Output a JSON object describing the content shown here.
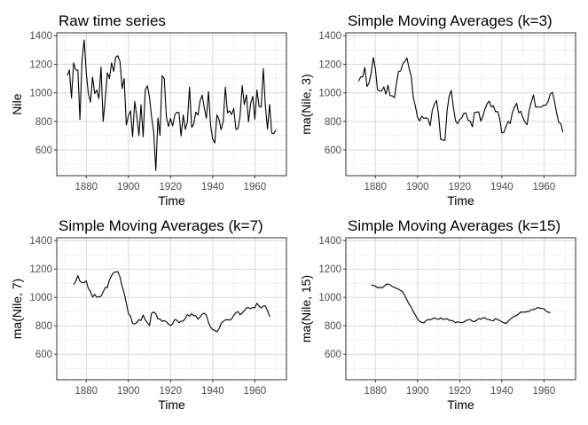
{
  "chart_data": [
    {
      "type": "line",
      "title": "Raw time series",
      "xlabel": "Time",
      "ylabel": "Nile",
      "xlim": [
        1866,
        1975
      ],
      "ylim": [
        420,
        1420
      ],
      "xticks": [
        1880,
        1900,
        1920,
        1940,
        1960
      ],
      "yticks": [
        600,
        800,
        1000,
        1200,
        1400
      ],
      "grid": true,
      "series": [
        {
          "x": [
            1871,
            1872,
            1873,
            1874,
            1875,
            1876,
            1877,
            1878,
            1879,
            1880,
            1881,
            1882,
            1883,
            1884,
            1885,
            1886,
            1887,
            1888,
            1889,
            1890,
            1891,
            1892,
            1893,
            1894,
            1895,
            1896,
            1897,
            1898,
            1899,
            1900,
            1901,
            1902,
            1903,
            1904,
            1905,
            1906,
            1907,
            1908,
            1909,
            1910,
            1911,
            1912,
            1913,
            1914,
            1915,
            1916,
            1917,
            1918,
            1919,
            1920,
            1921,
            1922,
            1923,
            1924,
            1925,
            1926,
            1927,
            1928,
            1929,
            1930,
            1931,
            1932,
            1933,
            1934,
            1935,
            1936,
            1937,
            1938,
            1939,
            1940,
            1941,
            1942,
            1943,
            1944,
            1945,
            1946,
            1947,
            1948,
            1949,
            1950,
            1951,
            1952,
            1953,
            1954,
            1955,
            1956,
            1957,
            1958,
            1959,
            1960,
            1961,
            1962,
            1963,
            1964,
            1965,
            1966,
            1967,
            1968,
            1969,
            1970
          ],
          "y": [
            1120,
            1160,
            963,
            1210,
            1160,
            1160,
            813,
            1230,
            1370,
            1140,
            995,
            935,
            1110,
            994,
            1020,
            960,
            1180,
            799,
            958,
            1140,
            1100,
            1210,
            1150,
            1250,
            1260,
            1220,
            1030,
            1100,
            774,
            840,
            874,
            694,
            940,
            833,
            701,
            916,
            692,
            1020,
            1050,
            969,
            831,
            726,
            456,
            824,
            702,
            1120,
            1100,
            832,
            764,
            821,
            768,
            845,
            864,
            862,
            698,
            845,
            744,
            796,
            1040,
            759,
            781,
            865,
            845,
            944,
            984,
            897,
            822,
            1010,
            771,
            676,
            649,
            846,
            812,
            742,
            801,
            1040,
            860,
            874,
            848,
            890,
            744,
            749,
            838,
            1050,
            918,
            986,
            797,
            923,
            975,
            815,
            1020,
            906,
            901,
            1170,
            912,
            746,
            919,
            718,
            714,
            740
          ]
        }
      ]
    },
    {
      "type": "line",
      "title": "Simple Moving Averages (k=3)",
      "xlabel": "Time",
      "ylabel": "ma(Nile, 3)",
      "xlim": [
        1866,
        1975
      ],
      "ylim": [
        420,
        1420
      ],
      "xticks": [
        1880,
        1900,
        1920,
        1940,
        1960
      ],
      "yticks": [
        600,
        800,
        1000,
        1200,
        1400
      ],
      "grid": true,
      "series": [
        {
          "x": [
            1872,
            1873,
            1874,
            1875,
            1876,
            1877,
            1878,
            1879,
            1880,
            1881,
            1882,
            1883,
            1884,
            1885,
            1886,
            1887,
            1888,
            1889,
            1890,
            1891,
            1892,
            1893,
            1894,
            1895,
            1896,
            1897,
            1898,
            1899,
            1900,
            1901,
            1902,
            1903,
            1904,
            1905,
            1906,
            1907,
            1908,
            1909,
            1910,
            1911,
            1912,
            1913,
            1914,
            1915,
            1916,
            1917,
            1918,
            1919,
            1920,
            1921,
            1922,
            1923,
            1924,
            1925,
            1926,
            1927,
            1928,
            1929,
            1930,
            1931,
            1932,
            1933,
            1934,
            1935,
            1936,
            1937,
            1938,
            1939,
            1940,
            1941,
            1942,
            1943,
            1944,
            1945,
            1946,
            1947,
            1948,
            1949,
            1950,
            1951,
            1952,
            1953,
            1954,
            1955,
            1956,
            1957,
            1958,
            1959,
            1960,
            1961,
            1962,
            1963,
            1964,
            1965,
            1966,
            1967,
            1968,
            1969
          ],
          "y": [
            1081,
            1111,
            1111,
            1177,
            1044,
            1068,
            1138,
            1247,
            1168,
            1023,
            1013,
            1013,
            1041,
            991,
            1053,
            980,
            979,
            966,
            1066,
            1150,
            1153,
            1203,
            1220,
            1243,
            1170,
            1117,
            968,
            905,
            829,
            803,
            836,
            822,
            825,
            817,
            770,
            876,
            920,
            947,
            842,
            674,
            670,
            667,
            875,
            975,
            1017,
            899,
            806,
            784,
            811,
            826,
            857,
            858,
            808,
            802,
            762,
            862,
            865,
            867,
            802,
            835,
            885,
            924,
            942,
            901,
            910,
            868,
            869,
            819,
            719,
            724,
            766,
            800,
            785,
            861,
            900,
            927,
            861,
            871,
            827,
            794,
            777,
            879,
            935,
            985,
            900,
            902,
            898,
            904,
            914,
            914,
            942,
            992,
            1003,
            943,
            859,
            794,
            784,
            724
          ]
        }
      ]
    },
    {
      "type": "line",
      "title": "Simple Moving Averages (k=7)",
      "xlabel": "Time",
      "ylabel": "ma(Nile, 7)",
      "xlim": [
        1866,
        1975
      ],
      "ylim": [
        420,
        1420
      ],
      "xticks": [
        1880,
        1900,
        1920,
        1940,
        1960
      ],
      "yticks": [
        600,
        800,
        1000,
        1200,
        1400
      ],
      "grid": true,
      "series": [
        {
          "x": [
            1874,
            1875,
            1876,
            1877,
            1878,
            1879,
            1880,
            1881,
            1882,
            1883,
            1884,
            1885,
            1886,
            1887,
            1888,
            1889,
            1890,
            1891,
            1892,
            1893,
            1894,
            1895,
            1896,
            1897,
            1898,
            1899,
            1900,
            1901,
            1902,
            1903,
            1904,
            1905,
            1906,
            1907,
            1908,
            1909,
            1910,
            1911,
            1912,
            1913,
            1914,
            1915,
            1916,
            1917,
            1918,
            1919,
            1920,
            1921,
            1922,
            1923,
            1924,
            1925,
            1926,
            1927,
            1928,
            1929,
            1930,
            1931,
            1932,
            1933,
            1934,
            1935,
            1936,
            1937,
            1938,
            1939,
            1940,
            1941,
            1942,
            1943,
            1944,
            1945,
            1946,
            1947,
            1948,
            1949,
            1950,
            1951,
            1952,
            1953,
            1954,
            1955,
            1956,
            1957,
            1958,
            1959,
            1960,
            1961,
            1962,
            1963,
            1964,
            1965,
            1966,
            1967
          ],
          "y": [
            1090,
            1114,
            1154,
            1115,
            1105,
            1104,
            1116,
            1063,
            1042,
            1002,
            1022,
            1002,
            1003,
            1008,
            1039,
            1070,
            1069,
            1124,
            1153,
            1176,
            1178,
            1181,
            1144,
            1079,
            1029,
            961,
            886,
            867,
            817,
            813,
            823,
            844,
            837,
            876,
            841,
            822,
            802,
            888,
            897,
            885,
            848,
            848,
            830,
            837,
            828,
            814,
            801,
            815,
            845,
            840,
            821,
            833,
            834,
            852,
            879,
            867,
            885,
            871,
            871,
            846,
            862,
            882,
            889,
            874,
            823,
            790,
            774,
            766,
            758,
            778,
            817,
            831,
            841,
            843,
            840,
            848,
            874,
            892,
            900,
            878,
            890,
            907,
            927,
            928,
            920,
            930,
            926,
            959,
            940,
            926,
            939,
            940,
            907,
            864
          ]
        }
      ]
    },
    {
      "type": "line",
      "title": "Simple Moving Averages (k=15)",
      "xlabel": "Time",
      "ylabel": "ma(Nile, 15)",
      "xlim": [
        1866,
        1975
      ],
      "ylim": [
        420,
        1420
      ],
      "xticks": [
        1880,
        1900,
        1920,
        1940,
        1960
      ],
      "yticks": [
        600,
        800,
        1000,
        1200,
        1400
      ],
      "grid": true,
      "series": [
        {
          "x": [
            1878,
            1879,
            1880,
            1881,
            1882,
            1883,
            1884,
            1885,
            1886,
            1887,
            1888,
            1889,
            1890,
            1891,
            1892,
            1893,
            1894,
            1895,
            1896,
            1897,
            1898,
            1899,
            1900,
            1901,
            1902,
            1903,
            1904,
            1905,
            1906,
            1907,
            1908,
            1909,
            1910,
            1911,
            1912,
            1913,
            1914,
            1915,
            1916,
            1917,
            1918,
            1919,
            1920,
            1921,
            1922,
            1923,
            1924,
            1925,
            1926,
            1927,
            1928,
            1929,
            1930,
            1931,
            1932,
            1933,
            1934,
            1935,
            1936,
            1937,
            1938,
            1939,
            1940,
            1941,
            1942,
            1943,
            1944,
            1945,
            1946,
            1947,
            1948,
            1949,
            1950,
            1951,
            1952,
            1953,
            1954,
            1955,
            1956,
            1957,
            1958,
            1959,
            1960,
            1961,
            1962,
            1963
          ],
          "y": [
            1089,
            1084,
            1080,
            1068,
            1071,
            1067,
            1076,
            1091,
            1094,
            1088,
            1076,
            1071,
            1063,
            1058,
            1048,
            1037,
            1010,
            983,
            952,
            931,
            900,
            876,
            847,
            832,
            824,
            820,
            836,
            844,
            842,
            849,
            856,
            848,
            845,
            856,
            845,
            847,
            850,
            838,
            839,
            833,
            822,
            829,
            824,
            822,
            826,
            837,
            842,
            845,
            832,
            830,
            838,
            851,
            846,
            855,
            857,
            845,
            843,
            838,
            835,
            851,
            844,
            837,
            828,
            822,
            816,
            833,
            846,
            858,
            868,
            872,
            884,
            897,
            896,
            896,
            900,
            902,
            914,
            915,
            920,
            929,
            925,
            921,
            920,
            903,
            896,
            891
          ]
        }
      ]
    }
  ]
}
